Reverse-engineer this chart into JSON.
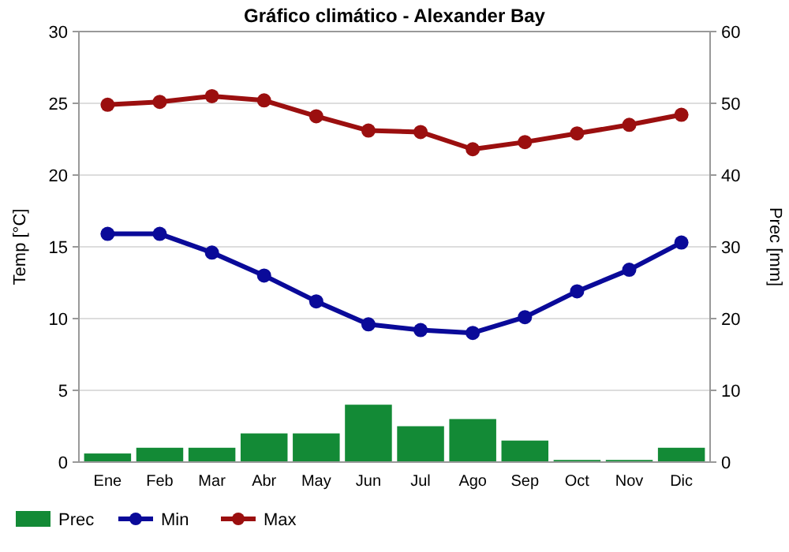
{
  "chart_data": {
    "type": "line",
    "title": "Gráfico climático - Alexander Bay",
    "ylabel": "Temp [°C]",
    "y2label": "Prec [mm]",
    "categories": [
      "Ene",
      "Feb",
      "Mar",
      "Abr",
      "May",
      "Jun",
      "Jul",
      "Ago",
      "Sep",
      "Oct",
      "Nov",
      "Dic"
    ],
    "series": [
      {
        "name": "Prec",
        "type": "bar",
        "axis": "y2",
        "color": "#138a36",
        "values": [
          1.2,
          2,
          2,
          4,
          4,
          8,
          5,
          6,
          3,
          0.3,
          0.3,
          2
        ]
      },
      {
        "name": "Min",
        "color": "#0a0a99",
        "values": [
          15.9,
          15.9,
          14.6,
          13.0,
          11.2,
          9.6,
          9.2,
          9.0,
          10.1,
          11.9,
          13.4,
          15.3
        ]
      },
      {
        "name": "Max",
        "color": "#9b0f0f",
        "values": [
          24.9,
          25.1,
          25.5,
          25.2,
          24.1,
          23.1,
          23.0,
          21.8,
          22.3,
          22.9,
          23.5,
          24.2
        ]
      }
    ],
    "ylim": [
      0,
      30
    ],
    "yticks": [
      0,
      5,
      10,
      15,
      20,
      25,
      30
    ],
    "y2lim": [
      0,
      60
    ],
    "y2ticks": [
      0,
      10,
      20,
      30,
      40,
      50,
      60
    ],
    "grid": "y",
    "legend": "bottom left",
    "marker": "circle",
    "line_style": "solid"
  }
}
